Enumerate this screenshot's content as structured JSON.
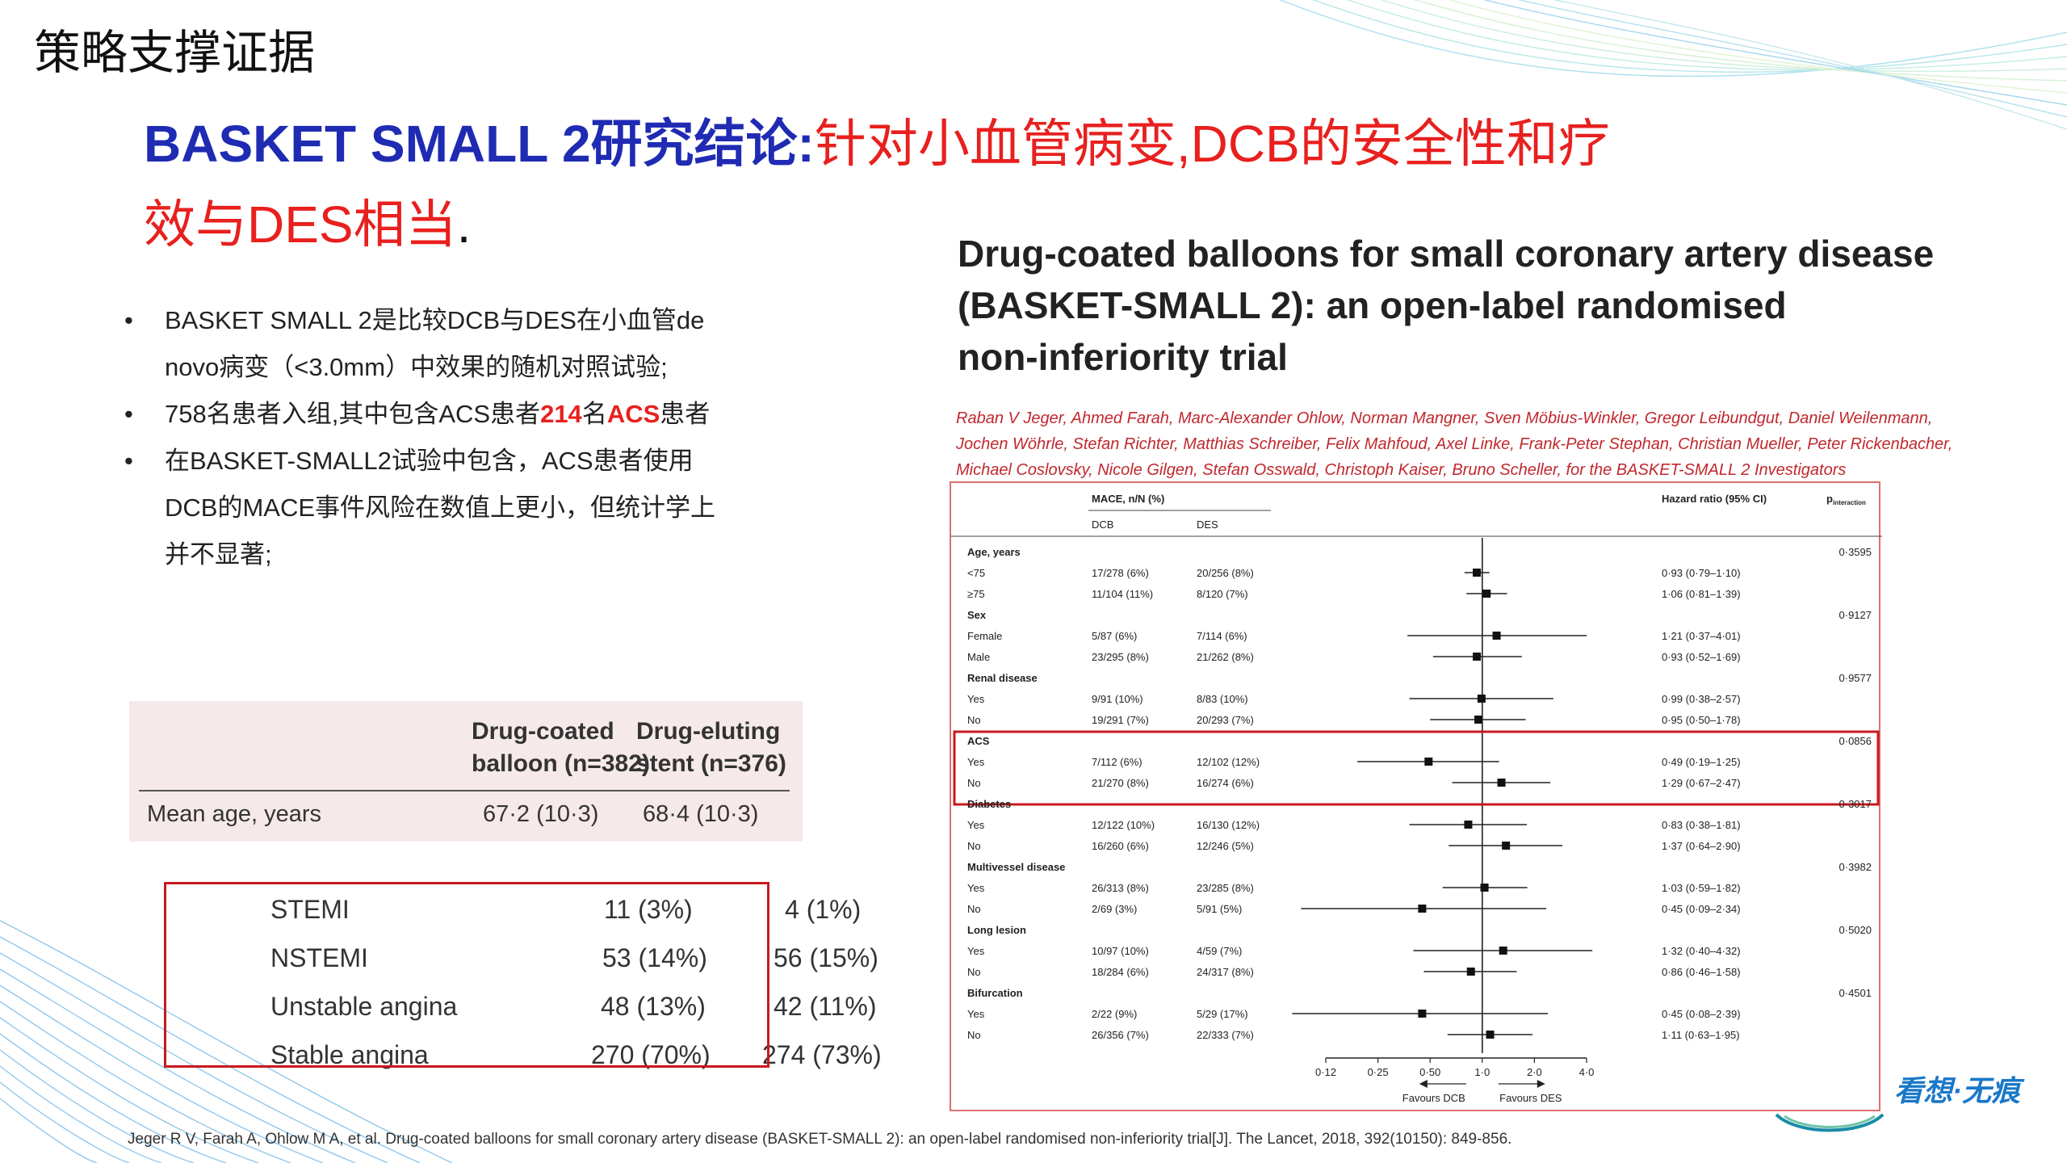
{
  "section_title": "策略支撑证据",
  "headline": {
    "blue": "BASKET SMALL 2研究结论:",
    "red_line1": "针对小血管病变,DCB的安全性和疗",
    "red_line2": "效与DES相当",
    "end": "."
  },
  "bullets": [
    {
      "text": "BASKET SMALL 2是比较DCB与DES在小血管de novo病变（<3.0mm）中效果的随机对照试验;"
    },
    {
      "pre": "758名患者入组,其中包含ACS患者",
      "n": "214",
      "mid": "名",
      "acs": "ACS",
      "post": "患者"
    },
    {
      "text": "在BASKET-SMALL2试验中包含，ACS患者使用DCB的MACE事件风险在数值上更小，但统计学上并不显著;"
    }
  ],
  "baseline_table": {
    "col1": [
      "Drug-coated",
      "balloon (n=382)"
    ],
    "col2": [
      "Drug-eluting",
      "stent (n=376)"
    ],
    "row_label": "Mean age, years",
    "dcb": "67·2 (10·3)",
    "des": "68·4 (10·3)"
  },
  "acs_table": [
    {
      "label": "STEMI",
      "dcb": "11 (3%)",
      "des": "4 (1%)"
    },
    {
      "label": "NSTEMI",
      "dcb": "53 (14%)",
      "des": "56 (15%)"
    },
    {
      "label": "Unstable angina",
      "dcb": "48 (13%)",
      "des": "42 (11%)"
    },
    {
      "label": "Stable angina",
      "dcb": "270 (70%)",
      "des": "274 (73%)"
    }
  ],
  "paper": {
    "title_lines": [
      "Drug-coated balloons for small coronary artery disease",
      "(BASKET-SMALL 2): an open-label randomised",
      "non-inferiority trial"
    ],
    "author_lines": [
      "Raban V Jeger, Ahmed Farah, Marc-Alexander Ohlow, Norman Mangner, Sven Möbius-Winkler, Gregor Leibundgut, Daniel Weilenmann,",
      "Jochen Wöhrle, Stefan Richter, Matthias Schreiber, Felix Mahfoud, Axel Linke, Frank-Peter Stephan, Christian Mueller, Peter Rickenbacher,",
      "Michael Coslovsky, Nicole Gilgen, Stefan Osswald, Christoph Kaiser, Bruno Scheller, for the BASKET-SMALL 2 Investigators"
    ]
  },
  "chart_data": {
    "type": "scatter",
    "subtype": "forest-plot",
    "header_mace": "MACE, n/N (%)",
    "header_dcb": "DCB",
    "header_des": "DES",
    "header_hr": "Hazard ratio (95% CI)",
    "header_p": "p",
    "header_p_sub": "interaction",
    "x_scale": "log",
    "x_ticks": [
      "0·12",
      "0·25",
      "0·50",
      "1·0",
      "2·0",
      "4·0"
    ],
    "x_tick_values": [
      0.125,
      0.25,
      0.5,
      1.0,
      2.0,
      4.0
    ],
    "xlim": [
      0.125,
      4.0
    ],
    "reference_line": 1.0,
    "favours_left": "Favours DCB",
    "favours_right": "Favours DES",
    "groups": [
      {
        "name": "Age, years",
        "p": "0·3595",
        "rows": [
          {
            "label": "<75",
            "dcb": "17/278 (6%)",
            "des": "20/256 (8%)",
            "hr_text": "0·93 (0·79–1·10)",
            "hr": 0.93,
            "lo": 0.79,
            "hi": 1.1
          },
          {
            "label": "≥75",
            "dcb": "11/104 (11%)",
            "des": "8/120 (7%)",
            "hr_text": "1·06 (0·81–1·39)",
            "hr": 1.06,
            "lo": 0.81,
            "hi": 1.39
          }
        ]
      },
      {
        "name": "Sex",
        "p": "0·9127",
        "rows": [
          {
            "label": "Female",
            "dcb": "5/87 (6%)",
            "des": "7/114 (6%)",
            "hr_text": "1·21 (0·37–4·01)",
            "hr": 1.21,
            "lo": 0.37,
            "hi": 4.01
          },
          {
            "label": "Male",
            "dcb": "23/295 (8%)",
            "des": "21/262 (8%)",
            "hr_text": "0·93 (0·52–1·69)",
            "hr": 0.93,
            "lo": 0.52,
            "hi": 1.69
          }
        ]
      },
      {
        "name": "Renal disease",
        "p": "0·9577",
        "rows": [
          {
            "label": "Yes",
            "dcb": "9/91 (10%)",
            "des": "8/83 (10%)",
            "hr_text": "0·99 (0·38–2·57)",
            "hr": 0.99,
            "lo": 0.38,
            "hi": 2.57
          },
          {
            "label": "No",
            "dcb": "19/291 (7%)",
            "des": "20/293 (7%)",
            "hr_text": "0·95 (0·50–1·78)",
            "hr": 0.95,
            "lo": 0.5,
            "hi": 1.78
          }
        ]
      },
      {
        "name": "ACS",
        "p": "0·0856",
        "highlight": true,
        "rows": [
          {
            "label": "Yes",
            "dcb": "7/112 (6%)",
            "des": "12/102 (12%)",
            "hr_text": "0·49 (0·19–1·25)",
            "hr": 0.49,
            "lo": 0.19,
            "hi": 1.25
          },
          {
            "label": "No",
            "dcb": "21/270 (8%)",
            "des": "16/274 (6%)",
            "hr_text": "1·29 (0·67–2·47)",
            "hr": 1.29,
            "lo": 0.67,
            "hi": 2.47
          }
        ]
      },
      {
        "name": "Diabetes",
        "p": "0·3017",
        "rows": [
          {
            "label": "Yes",
            "dcb": "12/122 (10%)",
            "des": "16/130 (12%)",
            "hr_text": "0·83 (0·38–1·81)",
            "hr": 0.83,
            "lo": 0.38,
            "hi": 1.81
          },
          {
            "label": "No",
            "dcb": "16/260 (6%)",
            "des": "12/246 (5%)",
            "hr_text": "1·37 (0·64–2·90)",
            "hr": 1.37,
            "lo": 0.64,
            "hi": 2.9
          }
        ]
      },
      {
        "name": "Multivessel disease",
        "p": "0·3982",
        "rows": [
          {
            "label": "Yes",
            "dcb": "26/313 (8%)",
            "des": "23/285 (8%)",
            "hr_text": "1·03 (0·59–1·82)",
            "hr": 1.03,
            "lo": 0.59,
            "hi": 1.82
          },
          {
            "label": "No",
            "dcb": "2/69 (3%)",
            "des": "5/91 (5%)",
            "hr_text": "0·45 (0·09–2·34)",
            "hr": 0.45,
            "lo": 0.09,
            "hi": 2.34
          }
        ]
      },
      {
        "name": "Long lesion",
        "p": "0·5020",
        "rows": [
          {
            "label": "Yes",
            "dcb": "10/97 (10%)",
            "des": "4/59 (7%)",
            "hr_text": "1·32 (0·40–4·32)",
            "hr": 1.32,
            "lo": 0.4,
            "hi": 4.32
          },
          {
            "label": "No",
            "dcb": "18/284 (6%)",
            "des": "24/317 (8%)",
            "hr_text": "0·86 (0·46–1·58)",
            "hr": 0.86,
            "lo": 0.46,
            "hi": 1.58
          }
        ]
      },
      {
        "name": "Bifurcation",
        "p": "0·4501",
        "rows": [
          {
            "label": "Yes",
            "dcb": "2/22 (9%)",
            "des": "5/29 (17%)",
            "hr_text": "0·45 (0·08–2·39)",
            "hr": 0.45,
            "lo": 0.08,
            "hi": 2.39
          },
          {
            "label": "No",
            "dcb": "26/356 (7%)",
            "des": "22/333 (7%)",
            "hr_text": "1·11 (0·63–1·95)",
            "hr": 1.11,
            "lo": 0.63,
            "hi": 1.95
          }
        ]
      }
    ]
  },
  "citation": "Jeger R V, Farah A, Ohlow M A, et al. Drug-coated balloons for small coronary artery disease (BASKET-SMALL 2): an open-label randomised non-inferiority trial[J]. The Lancet, 2018, 392(10150): 849-856.",
  "logo": "看想·无痕",
  "colors": {
    "accent_blue": "#1f2bb3",
    "accent_red": "#e8201e",
    "box_red": "#c9181e",
    "author_red": "#c0282e"
  }
}
